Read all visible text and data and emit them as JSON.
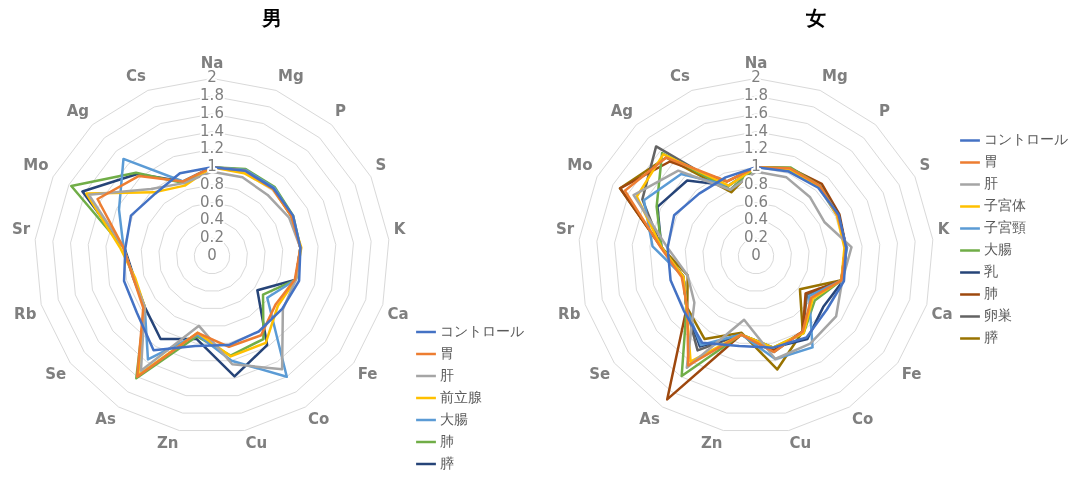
{
  "chart_data": [
    {
      "type": "radar",
      "title": "男",
      "categories": [
        "Na",
        "Mg",
        "P",
        "S",
        "K",
        "Ca",
        "Fe",
        "Co",
        "Cu",
        "Zn",
        "As",
        "Se",
        "Rb",
        "Sr",
        "Mo",
        "Ag",
        "Cs"
      ],
      "ylim": [
        0,
        2
      ],
      "yticks": [
        0,
        0.2,
        0.4,
        0.6,
        0.8,
        1,
        1.2,
        1.4,
        1.6,
        1.8,
        2
      ],
      "grid": true,
      "legend": "bottom right",
      "marker": "none",
      "line_style": "solid",
      "series": [
        {
          "name": "コントロール",
          "color": "#4472c4",
          "values": [
            1.0,
            1.03,
            1.03,
            1.02,
            1.0,
            1.02,
            0.99,
            1.0,
            1.02,
            1.03,
            1.25,
            1.06,
            1.03,
            0.98,
            1.02,
            0.95,
            1.0
          ]
        },
        {
          "name": "胃",
          "color": "#ed7d31",
          "values": [
            1.0,
            1.03,
            1.02,
            1.0,
            1.0,
            0.97,
            0.9,
            1.05,
            1.04,
            0.88,
            1.6,
            0.97,
            0.92,
            1.0,
            1.44,
            1.22,
            0.9
          ]
        },
        {
          "name": "肝",
          "color": "#a5a5a5",
          "values": [
            0.95,
            0.95,
            0.93,
            0.97,
            1.0,
            0.98,
            1.0,
            1.5,
            1.24,
            0.8,
            1.52,
            0.95,
            0.92,
            1.0,
            1.55,
            1.02,
            0.88
          ]
        },
        {
          "name": "前立腺",
          "color": "#ffc000",
          "values": [
            1.0,
            1.0,
            1.02,
            1.0,
            1.01,
            0.98,
            0.93,
            1.15,
            1.15,
            0.88,
            1.58,
            0.95,
            0.9,
            1.04,
            1.58,
            0.97,
            0.85
          ]
        },
        {
          "name": "大腸",
          "color": "#5b9bd5",
          "values": [
            1.0,
            1.04,
            1.04,
            1.01,
            1.0,
            0.98,
            0.78,
            1.6,
            1.2,
            0.9,
            1.37,
            0.95,
            0.92,
            1.0,
            1.17,
            1.48,
            0.9
          ]
        },
        {
          "name": "肺",
          "color": "#70ad47",
          "values": [
            1.0,
            1.05,
            1.05,
            1.02,
            1.0,
            0.98,
            0.72,
            1.1,
            1.14,
            0.92,
            1.62,
            0.95,
            0.92,
            1.0,
            1.77,
            1.27,
            0.88
          ]
        },
        {
          "name": "膵",
          "color": "#264478",
          "values": [
            1.0,
            1.04,
            1.03,
            1.0,
            1.0,
            0.98,
            0.64,
            1.18,
            1.38,
            0.95,
            1.1,
            0.95,
            0.91,
            0.99,
            1.63,
            1.25,
            0.9
          ]
        }
      ]
    },
    {
      "type": "radar",
      "title": "女",
      "categories": [
        "Na",
        "Mg",
        "P",
        "S",
        "K",
        "Ca",
        "Fe",
        "Co",
        "Cu",
        "Zn",
        "As",
        "Se",
        "Rb",
        "Sr",
        "Mo",
        "Ag",
        "Cs"
      ],
      "ylim": [
        0,
        2
      ],
      "yticks": [
        0,
        0.2,
        0.4,
        0.6,
        0.8,
        1,
        1.2,
        1.4,
        1.6,
        1.8,
        2
      ],
      "grid": true,
      "legend": "right",
      "marker": "none",
      "line_style": "solid",
      "series": [
        {
          "name": "コントロール",
          "color": "#4472c4",
          "values": [
            1.0,
            1.02,
            1.04,
            1.04,
            1.02,
            1.03,
            1.0,
            1.08,
            1.05,
            1.03,
            1.15,
            1.02,
            1.0,
            1.0,
            1.03,
            0.95,
            0.95
          ]
        },
        {
          "name": "胃",
          "color": "#ed7d31",
          "values": [
            1.0,
            1.06,
            1.07,
            1.03,
            1.02,
            1.0,
            0.78,
            1.0,
            1.1,
            0.9,
            1.45,
            0.97,
            0.87,
            1.08,
            1.65,
            1.5,
            0.9
          ]
        },
        {
          "name": "肝",
          "color": "#a5a5a5",
          "values": [
            0.95,
            0.95,
            0.9,
            0.86,
            1.08,
            1.01,
            1.13,
            1.16,
            1.18,
            0.73,
            1.48,
            0.87,
            0.8,
            1.0,
            1.54,
            1.3,
            0.8
          ]
        },
        {
          "name": "子宮体",
          "color": "#ffc000",
          "values": [
            1.0,
            1.05,
            1.06,
            1.02,
            1.0,
            1.0,
            0.8,
            1.02,
            1.05,
            0.9,
            1.4,
            0.98,
            0.85,
            1.07,
            1.5,
            1.55,
            0.85
          ]
        },
        {
          "name": "子宮頸",
          "color": "#5b9bd5",
          "values": [
            1.0,
            1.04,
            1.05,
            1.02,
            1.03,
            1.0,
            0.75,
            1.21,
            1.18,
            0.9,
            1.18,
            0.98,
            0.85,
            1.17,
            1.41,
            1.25,
            0.85
          ]
        },
        {
          "name": "大腸",
          "color": "#70ad47",
          "values": [
            1.0,
            1.07,
            1.07,
            1.03,
            1.01,
            1.0,
            0.83,
            1.02,
            1.05,
            0.9,
            1.59,
            0.98,
            0.85,
            1.07,
            1.25,
            1.57,
            0.8
          ]
        },
        {
          "name": "乳",
          "color": "#264478",
          "values": [
            1.0,
            1.05,
            1.07,
            1.04,
            1.02,
            1.02,
            0.95,
            1.1,
            1.05,
            0.9,
            1.2,
            0.98,
            0.85,
            1.07,
            1.24,
            1.15,
            0.85
          ]
        },
        {
          "name": "肺",
          "color": "#9e480e",
          "values": [
            1.0,
            1.06,
            1.1,
            1.05,
            1.02,
            1.01,
            0.7,
            1.0,
            1.08,
            0.9,
            1.9,
            0.98,
            0.85,
            1.07,
            1.71,
            1.44,
            0.9
          ]
        },
        {
          "name": "卵巣",
          "color": "#636363",
          "values": [
            1.0,
            1.05,
            1.06,
            1.03,
            1.01,
            1.0,
            0.72,
            1.0,
            1.1,
            0.9,
            1.25,
            0.98,
            0.85,
            1.07,
            1.43,
            1.67,
            0.8
          ]
        },
        {
          "name": "膵",
          "color": "#997300",
          "values": [
            1.0,
            1.05,
            1.06,
            1.03,
            1.01,
            1.0,
            0.62,
            1.0,
            1.3,
            0.88,
            1.1,
            0.97,
            0.8,
            1.07,
            1.71,
            1.5,
            0.77
          ]
        }
      ]
    }
  ]
}
